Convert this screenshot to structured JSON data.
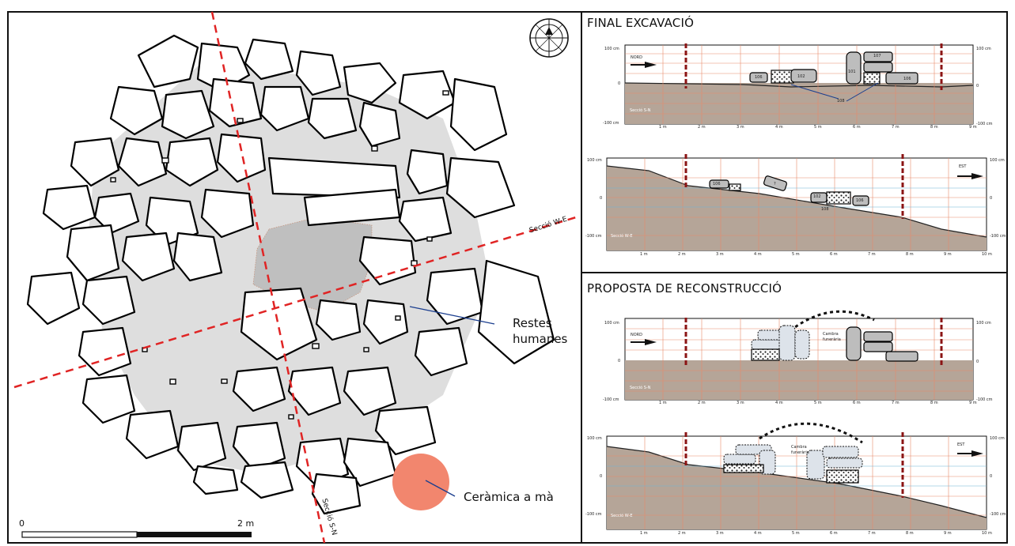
{
  "plan": {
    "scale": {
      "start": "0",
      "end": "2 m"
    },
    "section_we_label": "Secció W-E",
    "section_sn_label": "Secció S-N",
    "annotations": {
      "human_remains": [
        "Restes",
        "humanes"
      ],
      "pottery": "Ceràmica a mà"
    },
    "compass_icon": "compass-rose-icon"
  },
  "panels": {
    "excavation": {
      "title": "FINAL EXCAVACIÓ",
      "sn": {
        "left_scale": [
          "100 cm",
          "0",
          "-100 cm"
        ],
        "right_scale": [
          "100 cm",
          "0",
          "-100 cm"
        ],
        "direction": "NORD",
        "section": "Secció S-N",
        "stone_labels": [
          "106",
          "102",
          "101",
          "107",
          "106",
          "108"
        ],
        "m_ticks": [
          "1 m",
          "2 m",
          "3 m",
          "4 m",
          "5 m",
          "6 m",
          "7 m",
          "8 m",
          "9 m"
        ]
      },
      "we": {
        "left_scale": [
          "100 cm",
          "0",
          "-100 cm"
        ],
        "right_scale": [
          "100 cm",
          "0",
          "-100 cm"
        ],
        "direction": "EST",
        "section": "Secció W-E",
        "stone_labels": [
          "106",
          "?",
          "102",
          "106",
          "108"
        ],
        "m_ticks": [
          "1 m",
          "2 m",
          "3 m",
          "4 m",
          "5 m",
          "6 m",
          "7 m",
          "8 m",
          "9 m",
          "10 m"
        ]
      }
    },
    "reconstruction": {
      "title": "PROPOSTA DE RECONSTRUCCIÓ",
      "sn": {
        "left_scale": [
          "100 cm",
          "0",
          "-100 cm"
        ],
        "right_scale": [
          "100 cm",
          "0",
          "-100 cm"
        ],
        "direction": "NORD",
        "section": "Secció S-N",
        "chamber": [
          "Cambra",
          "funerària"
        ],
        "m_ticks": [
          "1 m",
          "2 m",
          "3 m",
          "4 m",
          "5 m",
          "6 m",
          "7 m",
          "8 m",
          "9 m"
        ]
      },
      "we": {
        "left_scale": [
          "100 cm",
          "0",
          "-100 cm"
        ],
        "right_scale": [
          "100 cm",
          "0",
          "-100 cm"
        ],
        "direction": "EST",
        "section": "Secció W-E",
        "chamber": [
          "Cambra",
          "funerària"
        ],
        "m_ticks": [
          "1 m",
          "2 m",
          "3 m",
          "4 m",
          "5 m",
          "6 m",
          "7 m",
          "8 m",
          "9 m",
          "10 m"
        ]
      }
    }
  },
  "colors": {
    "ground": "#b5a598",
    "grid": "#e8896a",
    "red_dash": "#e02424",
    "stone": "#bdbdbd",
    "pottery": "#f2866e"
  }
}
